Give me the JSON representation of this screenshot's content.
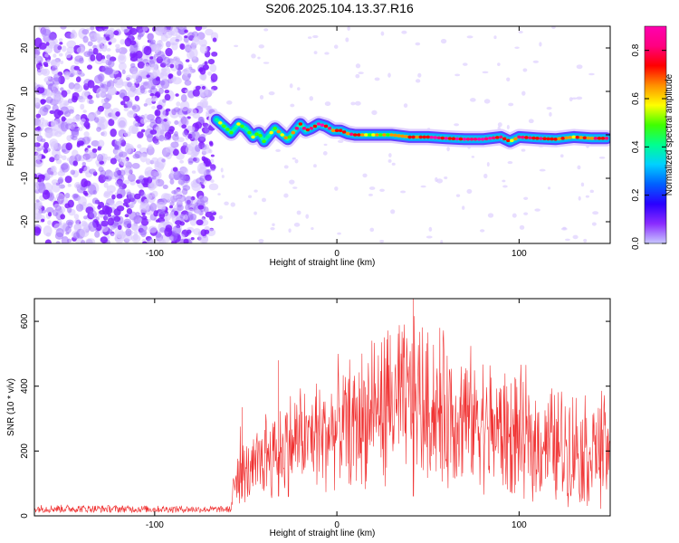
{
  "title": "S206.2025.104.13.37.R16",
  "colors": {
    "snr_line": "#f03030",
    "frame": "#000000",
    "speckle": "#7f20ff",
    "colormap": [
      "#c8c8ff",
      "#8a2cff",
      "#2a00ff",
      "#0060ff",
      "#00d0ff",
      "#00ff90",
      "#40ff00",
      "#ffff00",
      "#ff9000",
      "#ff0000",
      "#ff0080",
      "#ff00b0"
    ]
  },
  "chart_data": [
    {
      "type": "heatmap",
      "title": "S206.2025.104.13.37.R16",
      "xlabel": "Height of straight line (km)",
      "ylabel": "Frequency (Hz)",
      "xlim": [
        -166,
        150
      ],
      "ylim": [
        -25,
        25
      ],
      "x_ticks": [
        -100,
        0,
        100
      ],
      "y_ticks": [
        -20,
        -10,
        0,
        10,
        20
      ],
      "noise_region_x": [
        -166,
        -67
      ],
      "ridge": {
        "x": [
          -66,
          -62,
          -58,
          -54,
          -50,
          -46,
          -43,
          -40,
          -37,
          -34,
          -30,
          -27,
          -24,
          -20,
          -17,
          -14,
          -10,
          -6,
          -2,
          2,
          6,
          10,
          15,
          20,
          30,
          40,
          50,
          60,
          70,
          80,
          90,
          95,
          100,
          110,
          120,
          130,
          140,
          148
        ],
        "y": [
          3.5,
          2,
          0.5,
          2.5,
          1.5,
          -0.5,
          0.5,
          -1.5,
          0,
          1.5,
          0,
          -1,
          0.5,
          2.5,
          1,
          1.5,
          2.5,
          2,
          1,
          1,
          0.3,
          0,
          0,
          0,
          0,
          -0.5,
          -0.5,
          -0.8,
          -1,
          -1,
          -0.5,
          -1.5,
          -0.5,
          -0.8,
          -1,
          -0.5,
          -0.8,
          -0.8
        ],
        "amplitude": [
          0.5,
          0.5,
          0.45,
          0.5,
          0.45,
          0.45,
          0.5,
          0.45,
          0.5,
          0.6,
          0.55,
          0.6,
          0.65,
          0.8,
          0.7,
          0.75,
          0.85,
          0.8,
          0.75,
          0.8,
          0.7,
          0.85,
          0.55,
          0.55,
          0.6,
          0.65,
          0.8,
          0.85,
          0.85,
          0.9,
          0.75,
          0.6,
          0.85,
          0.8,
          0.75,
          0.6,
          0.7,
          0.8
        ]
      },
      "colorbar": {
        "label": "Normalized spectral amplitude",
        "range": [
          0,
          0.9
        ],
        "ticks": [
          0.0,
          0.2,
          0.4,
          0.6,
          0.8
        ]
      }
    },
    {
      "type": "line",
      "xlabel": "Height of straight line (km)",
      "ylabel": "SNR (10 * v/v)",
      "xlim": [
        -166,
        150
      ],
      "ylim": [
        0,
        670
      ],
      "x_ticks": [
        -100,
        0,
        100
      ],
      "y_ticks": [
        0,
        200,
        400,
        600
      ],
      "envelope": {
        "x": [
          -166,
          -70,
          -58,
          -55,
          -50,
          -45,
          -40,
          -30,
          -20,
          -10,
          0,
          10,
          20,
          30,
          40,
          45,
          50,
          60,
          70,
          80,
          90,
          100,
          110,
          120,
          130,
          140,
          150
        ],
        "upper": [
          35,
          30,
          30,
          330,
          240,
          270,
          370,
          390,
          450,
          460,
          500,
          540,
          610,
          630,
          660,
          665,
          640,
          600,
          560,
          540,
          500,
          480,
          460,
          440,
          430,
          420,
          410
        ],
        "lower": [
          10,
          10,
          10,
          20,
          30,
          40,
          40,
          50,
          60,
          60,
          60,
          70,
          80,
          90,
          100,
          100,
          90,
          80,
          70,
          60,
          50,
          40,
          30,
          30,
          20,
          20,
          20
        ]
      },
      "notable_peaks": [
        {
          "x": -52,
          "y": 335
        },
        {
          "x": -32,
          "y": 480
        },
        {
          "x": 42,
          "y": 670
        }
      ]
    }
  ]
}
